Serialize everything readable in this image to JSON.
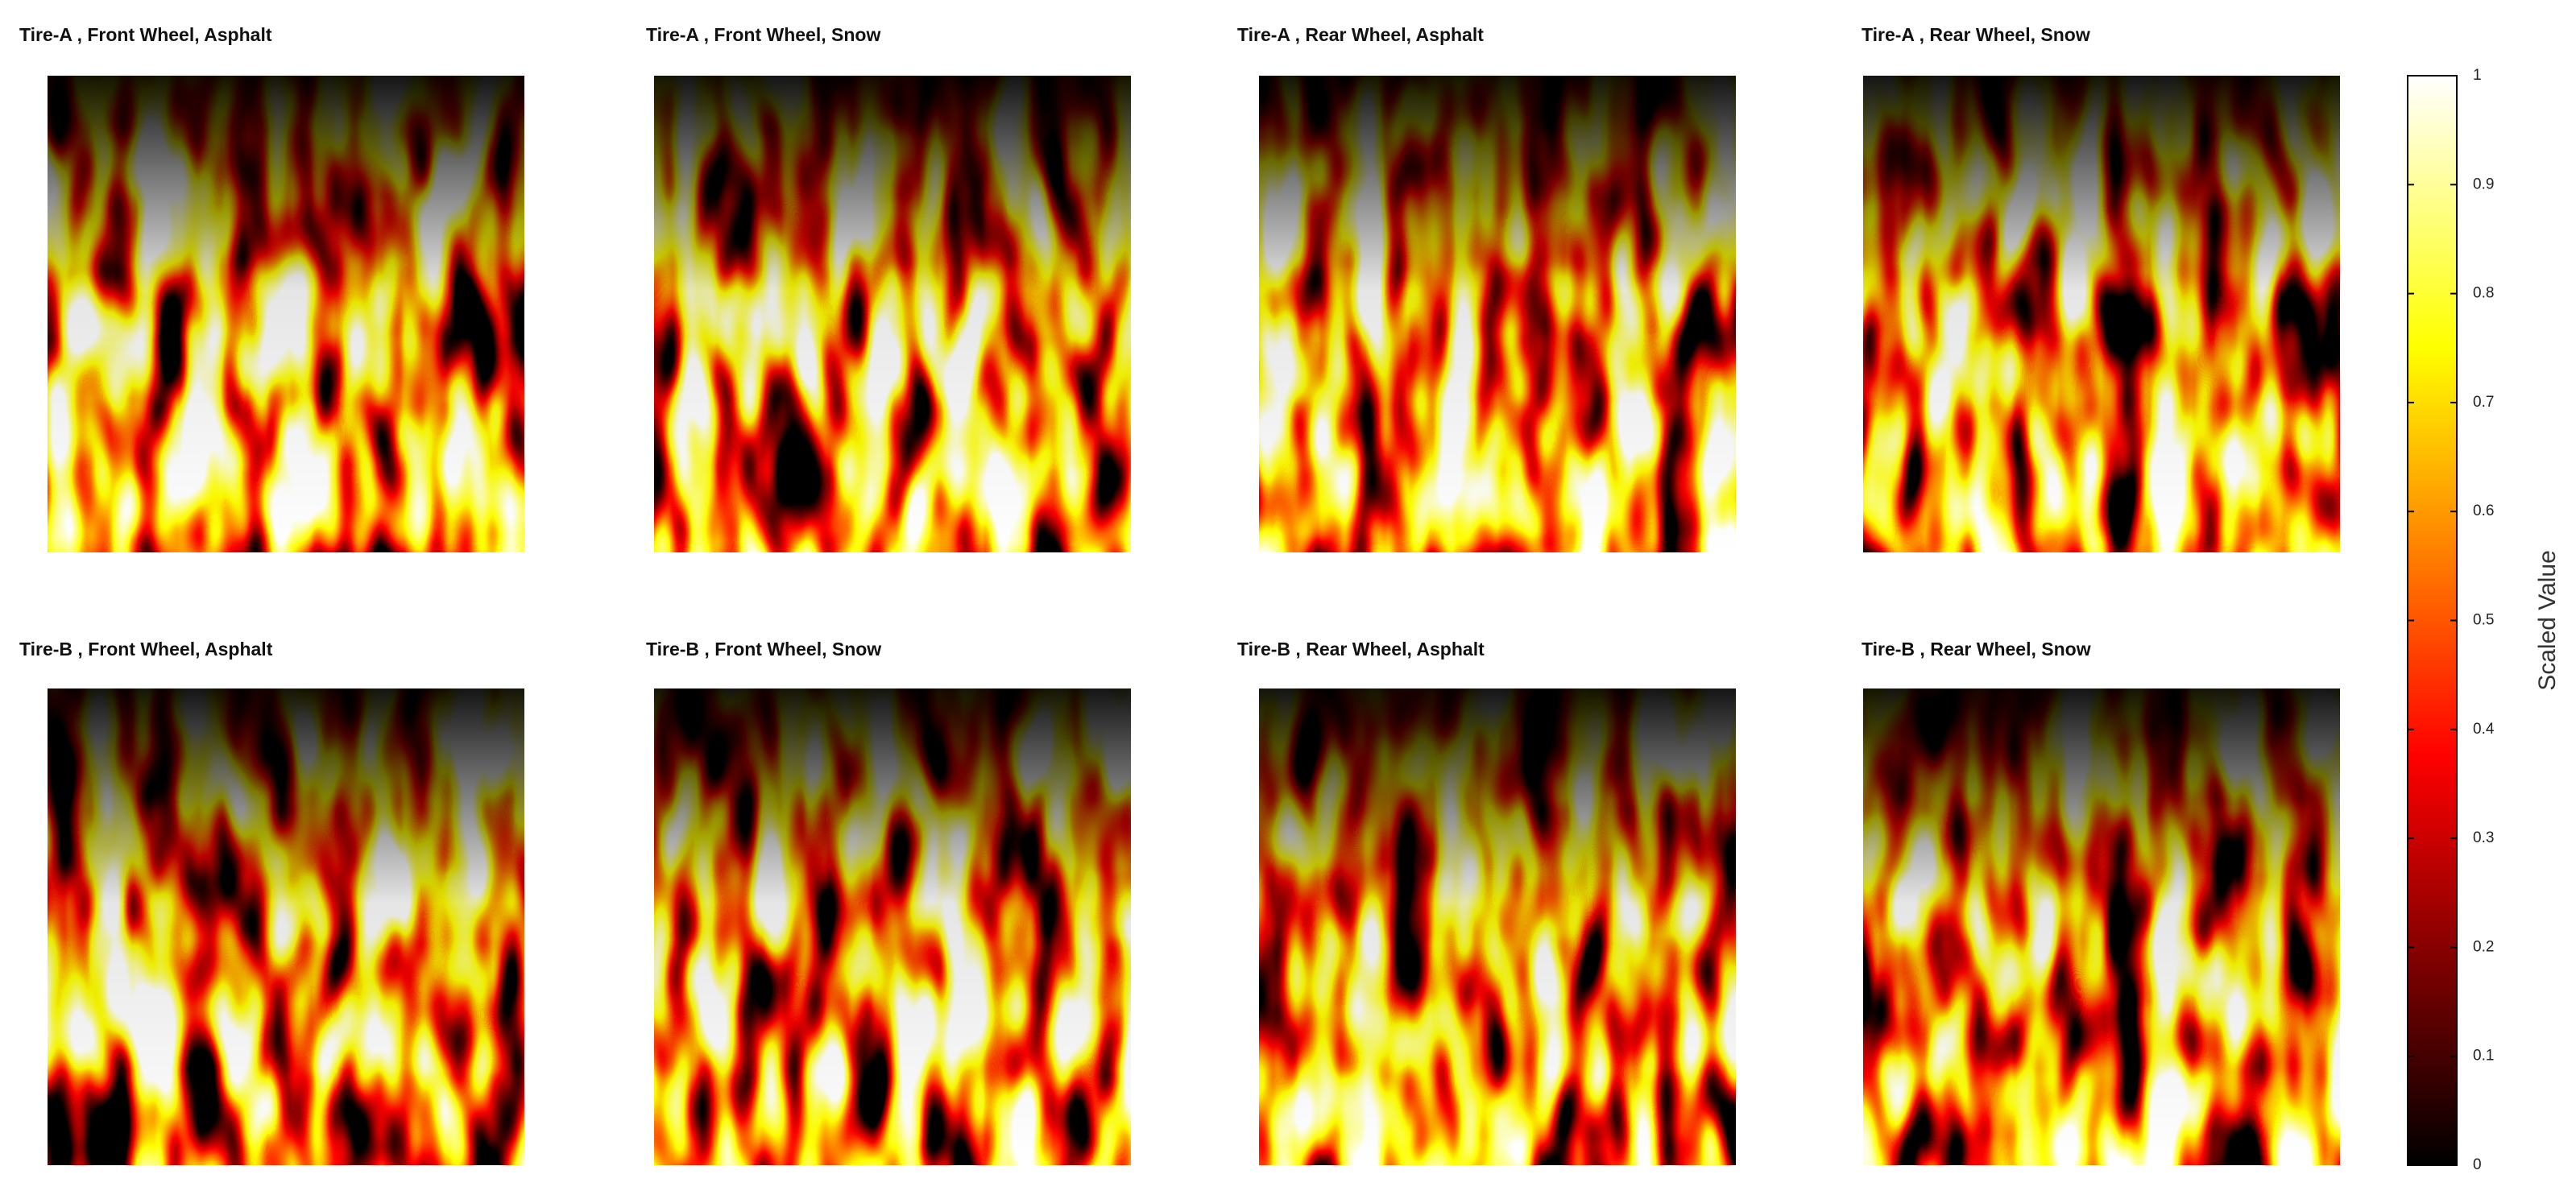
{
  "chart_data": [
    {
      "type": "heatmap",
      "title": "Tire-A , Front Wheel, Asphalt"
    },
    {
      "type": "heatmap",
      "title": "Tire-A , Front Wheel, Snow"
    },
    {
      "type": "heatmap",
      "title": "Tire-A , Rear Wheel, Asphalt"
    },
    {
      "type": "heatmap",
      "title": "Tire-A , Rear Wheel, Snow"
    },
    {
      "type": "heatmap",
      "title": "Tire-B , Front Wheel, Asphalt"
    },
    {
      "type": "heatmap",
      "title": "Tire-B , Front Wheel, Snow"
    },
    {
      "type": "heatmap",
      "title": "Tire-B , Rear Wheel, Asphalt"
    },
    {
      "type": "heatmap",
      "title": "Tire-B , Rear Wheel, Snow"
    }
  ],
  "colorbar": {
    "label": "Scaled Value",
    "ylim": [
      0,
      1
    ],
    "yticks": [
      0,
      0.1,
      0.2,
      0.3,
      0.4,
      0.5,
      0.6,
      0.7,
      0.8,
      0.9,
      1
    ]
  }
}
